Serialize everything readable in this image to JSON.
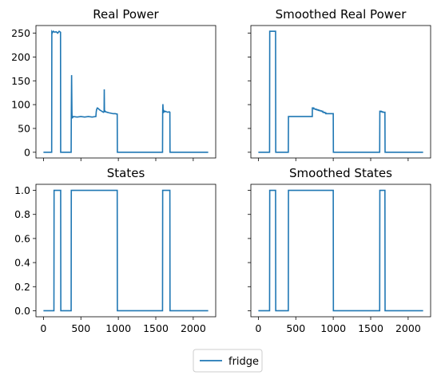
{
  "colors": {
    "series": "#1f77b4"
  },
  "legend": {
    "label": "fridge",
    "placement": "bottom-center"
  },
  "chart_data": [
    {
      "type": "line",
      "title": "Real Power",
      "xlim": [
        -100,
        2300
      ],
      "ylim": [
        -12,
        266
      ],
      "xticks": [
        0,
        500,
        1000,
        1500,
        2000
      ],
      "yticks": [
        0,
        50,
        100,
        150,
        200,
        250
      ],
      "ytick_labels": [
        "0",
        "50",
        "100",
        "150",
        "200",
        "250"
      ],
      "show_x_tick_labels": false,
      "show_y_tick_labels": true,
      "series": [
        {
          "name": "fridge",
          "x": [
            0,
            110,
            112,
            120,
            130,
            150,
            170,
            190,
            210,
            228,
            230,
            232,
            370,
            372,
            376,
            380,
            382,
            386,
            390,
            400,
            450,
            500,
            550,
            600,
            650,
            700,
            705,
            710,
            720,
            730,
            750,
            770,
            790,
            800,
            810,
            812,
            815,
            820,
            830,
            850,
            870,
            900,
            930,
            960,
            985,
            987,
            1590,
            1592,
            1595,
            1600,
            1602,
            1605,
            1610,
            1620,
            1630,
            1640,
            1660,
            1680,
            1688,
            1690,
            2200
          ],
          "y": [
            0,
            0,
            253,
            251,
            254,
            252,
            253,
            250,
            254,
            252,
            0,
            0,
            0,
            75,
            162,
            90,
            72,
            76,
            73,
            75,
            74,
            75,
            74,
            75,
            74,
            75,
            85,
            90,
            93,
            92,
            89,
            87,
            85,
            84,
            86,
            132,
            84,
            87,
            85,
            84,
            83,
            82,
            81,
            81,
            80,
            0,
            0,
            84,
            101,
            82,
            88,
            84,
            87,
            85,
            86,
            85,
            84,
            85,
            84,
            0,
            0
          ]
        }
      ]
    },
    {
      "type": "line",
      "title": "Smoothed Real Power",
      "xlim": [
        -100,
        2300
      ],
      "ylim": [
        -12,
        266
      ],
      "xticks": [
        0,
        500,
        1000,
        1500,
        2000
      ],
      "yticks": [
        0,
        50,
        100,
        150,
        200,
        250
      ],
      "ytick_labels": [
        "0",
        "50",
        "100",
        "150",
        "200",
        "250"
      ],
      "show_x_tick_labels": false,
      "show_y_tick_labels": false,
      "series": [
        {
          "name": "fridge",
          "x": [
            0,
            150,
            152,
            230,
            232,
            400,
            402,
            720,
            721,
            740,
            741,
            760,
            761,
            780,
            781,
            800,
            801,
            820,
            821,
            840,
            841,
            860,
            861,
            880,
            881,
            900,
            901,
            1000,
            1002,
            1620,
            1622,
            1640,
            1641,
            1660,
            1661,
            1690,
            1692,
            2200
          ],
          "y": [
            0,
            0,
            254,
            254,
            0,
            0,
            75,
            75,
            93,
            93,
            91,
            91,
            90,
            90,
            89,
            89,
            88,
            88,
            87,
            87,
            86,
            86,
            84,
            84,
            83,
            83,
            81,
            81,
            0,
            0,
            86,
            86,
            85,
            85,
            84,
            84,
            0,
            0
          ]
        }
      ]
    },
    {
      "type": "line",
      "title": "States",
      "xlim": [
        -100,
        2300
      ],
      "ylim": [
        -0.05,
        1.05
      ],
      "xticks": [
        0,
        500,
        1000,
        1500,
        2000
      ],
      "xtick_labels": [
        "0",
        "500",
        "1000",
        "1500",
        "2000"
      ],
      "yticks": [
        0,
        0.2,
        0.4,
        0.6,
        0.8,
        1.0
      ],
      "ytick_labels": [
        "0.0",
        "0.2",
        "0.4",
        "0.6",
        "0.8",
        "1.0"
      ],
      "show_x_tick_labels": true,
      "show_y_tick_labels": true,
      "series": [
        {
          "name": "fridge",
          "x": [
            0,
            140,
            142,
            230,
            232,
            370,
            372,
            985,
            987,
            1590,
            1592,
            1688,
            1690,
            2200
          ],
          "y": [
            0,
            0,
            1,
            1,
            0,
            0,
            1,
            1,
            0,
            0,
            1,
            1,
            0,
            0
          ]
        }
      ]
    },
    {
      "type": "line",
      "title": "Smoothed States",
      "xlim": [
        -100,
        2300
      ],
      "ylim": [
        -0.05,
        1.05
      ],
      "xticks": [
        0,
        500,
        1000,
        1500,
        2000
      ],
      "xtick_labels": [
        "0",
        "500",
        "1000",
        "1500",
        "2000"
      ],
      "yticks": [
        0,
        0.2,
        0.4,
        0.6,
        0.8,
        1.0
      ],
      "ytick_labels": [
        "0.0",
        "0.2",
        "0.4",
        "0.6",
        "0.8",
        "1.0"
      ],
      "show_x_tick_labels": true,
      "show_y_tick_labels": false,
      "series": [
        {
          "name": "fridge",
          "x": [
            0,
            150,
            152,
            230,
            232,
            400,
            402,
            1000,
            1002,
            1620,
            1622,
            1690,
            1692,
            2200
          ],
          "y": [
            0,
            0,
            1,
            1,
            0,
            0,
            1,
            1,
            0,
            0,
            1,
            1,
            0,
            0
          ]
        }
      ]
    }
  ]
}
